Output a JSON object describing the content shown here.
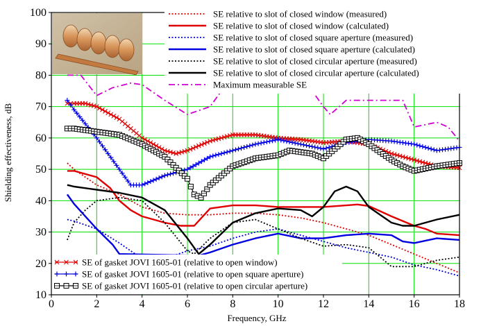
{
  "chart_data": {
    "type": "line",
    "title": "",
    "xlabel": "Frequency, GHz",
    "ylabel": "Shielding effectiveness, dB",
    "xlim": [
      0,
      18
    ],
    "ylim": [
      10,
      100
    ],
    "xticks": [
      0,
      2,
      4,
      6,
      8,
      10,
      12,
      14,
      16,
      18
    ],
    "yticks": [
      10,
      20,
      30,
      40,
      50,
      60,
      70,
      80,
      90,
      100
    ],
    "grid": true,
    "grid_color": "#00e000",
    "legend_top_placement": "top-right",
    "legend_bottom_placement": "bottom-left",
    "inset_image": "gasket-photo",
    "series": [
      {
        "name": "SE relative to slot of closed window (measured)",
        "color": "#e00000",
        "style": "dotted",
        "x": [
          0.7,
          1,
          2,
          3,
          4,
          5,
          6,
          7,
          8,
          9,
          10,
          11,
          12,
          13,
          14,
          15,
          16,
          17,
          18
        ],
        "y": [
          52,
          50,
          45,
          42,
          38,
          36,
          35.5,
          35.5,
          36,
          36,
          35.5,
          34.5,
          33,
          31,
          29,
          26,
          23,
          20,
          17
        ]
      },
      {
        "name": "SE relative to slot of closed window (calculated)",
        "color": "#e00000",
        "style": "solid",
        "x": [
          0.7,
          1,
          2,
          2.6,
          3,
          3.5,
          4,
          5,
          5.7,
          6.3,
          7,
          8,
          9,
          10,
          11,
          12,
          13,
          13.5,
          14,
          15,
          16,
          16.5,
          17,
          18
        ],
        "y": [
          49.5,
          49.5,
          47.5,
          44,
          40,
          37,
          35,
          33,
          32,
          32,
          37.5,
          38.5,
          38.5,
          38,
          38,
          38,
          38.5,
          38.8,
          38.3,
          35,
          32,
          31,
          29.5,
          29
        ]
      },
      {
        "name": "SE relative to slot of closed square aperture (measured)",
        "color": "#0000e0",
        "style": "dotted",
        "x": [
          0.7,
          1,
          2,
          3,
          3.7,
          5,
          6,
          7,
          8,
          9,
          10,
          11,
          12,
          13,
          14,
          15,
          16,
          17,
          18
        ],
        "y": [
          34,
          33.5,
          31,
          26.5,
          23,
          21.5,
          24,
          25.5,
          28,
          30,
          31,
          29,
          27,
          25,
          23.5,
          22,
          19.5,
          18,
          16
        ]
      },
      {
        "name": "SE relative to slot of closed square aperture (calculated)",
        "color": "#0000e0",
        "style": "solid",
        "x": [
          0.7,
          1,
          2,
          2.7,
          3,
          6.5,
          7,
          8,
          9,
          10,
          11,
          12,
          13,
          14,
          15,
          15.5,
          16,
          17,
          18
        ],
        "y": [
          42,
          39,
          31,
          26,
          23,
          22.5,
          23.5,
          26,
          28,
          29.5,
          28,
          28,
          29,
          29.5,
          29,
          27,
          26.5,
          28,
          27.5
        ]
      },
      {
        "name": "SE relative to slot of closed circular aperture (measured)",
        "color": "#000000",
        "style": "dotted",
        "x": [
          0.7,
          1,
          1.5,
          2,
          3,
          4,
          5,
          6,
          6.3,
          7,
          8,
          9,
          10,
          11,
          12,
          13,
          14,
          14.5,
          15,
          16,
          17,
          18
        ],
        "y": [
          27.5,
          33,
          37,
          40,
          41,
          40,
          33,
          24,
          23,
          28,
          33,
          34,
          31,
          28,
          25.5,
          26,
          25,
          22,
          19,
          19,
          21,
          22
        ]
      },
      {
        "name": "SE relative to slot of closed circular aperture (calculated)",
        "color": "#000000",
        "style": "solid",
        "x": [
          0.7,
          1,
          2,
          3,
          4,
          5,
          6,
          6.5,
          7,
          8,
          9,
          10,
          11,
          11.5,
          12,
          12.5,
          13,
          13.5,
          14,
          15,
          15.5,
          16,
          17,
          18
        ],
        "y": [
          45,
          44.5,
          43.5,
          42.5,
          41,
          37,
          28,
          23,
          26,
          33,
          36,
          37.5,
          37,
          35,
          38,
          43,
          44.5,
          43,
          38,
          33,
          32,
          32,
          34,
          35.5
        ]
      },
      {
        "name": "Maximum measurable SE",
        "color": "#d000d0",
        "style": "dashdot",
        "x": [
          0.7,
          1.3,
          2,
          2.7,
          3.5,
          4,
          5,
          6,
          7,
          8,
          9,
          10,
          11,
          12,
          12.3,
          12.7,
          13,
          15.5,
          16,
          17,
          17.5,
          18
        ],
        "y": [
          80,
          80,
          73.5,
          76,
          77.5,
          77,
          72,
          67.5,
          70,
          80,
          86,
          88,
          80,
          70,
          67.5,
          70,
          72,
          72,
          63.5,
          65,
          63.5,
          59
        ]
      },
      {
        "name": "SE of gasket JOVI 1605-01 (relative to open window)",
        "color": "#e00000",
        "style": "marker-x",
        "x": [
          0.7,
          1,
          1.5,
          2,
          3,
          4,
          5,
          5.5,
          6,
          7,
          8,
          9,
          10,
          11,
          12,
          13,
          14,
          15,
          16,
          17,
          18
        ],
        "y": [
          71,
          71,
          71,
          70,
          66,
          60,
          56,
          55,
          56,
          59,
          61,
          61,
          60,
          59.5,
          58.5,
          59,
          58,
          55,
          53,
          51,
          50.5
        ]
      },
      {
        "name": "SE of gasket JOVI 1605-01 (relative to open square aperture)",
        "color": "#0000e0",
        "style": "marker-plus",
        "x": [
          0.7,
          1,
          2,
          3,
          3.5,
          4,
          5,
          6,
          7,
          8,
          9,
          10,
          11,
          12,
          13,
          14,
          15,
          16,
          17,
          18
        ],
        "y": [
          72,
          69,
          60,
          50,
          45,
          45,
          48,
          50,
          54,
          56,
          58,
          59.5,
          58,
          56.5,
          58.5,
          59.5,
          59,
          58,
          56,
          57
        ]
      },
      {
        "name": "SE of gasket JOVI 1605-01 (relative to open circular aperture)",
        "color": "#000000",
        "style": "marker-square",
        "x": [
          0.7,
          1,
          2,
          3,
          4,
          5,
          6,
          6.3,
          6.6,
          7,
          8,
          9,
          10,
          10.5,
          11,
          11.5,
          12,
          12.5,
          13,
          13.5,
          14,
          15,
          15.5,
          16,
          17,
          18
        ],
        "y": [
          63,
          63,
          62,
          61,
          58,
          54,
          47,
          42,
          41,
          45,
          51,
          53.5,
          54.5,
          56,
          55.5,
          55,
          53.5,
          56.5,
          59.5,
          60,
          58,
          53,
          51,
          49.5,
          51,
          52
        ]
      }
    ]
  }
}
